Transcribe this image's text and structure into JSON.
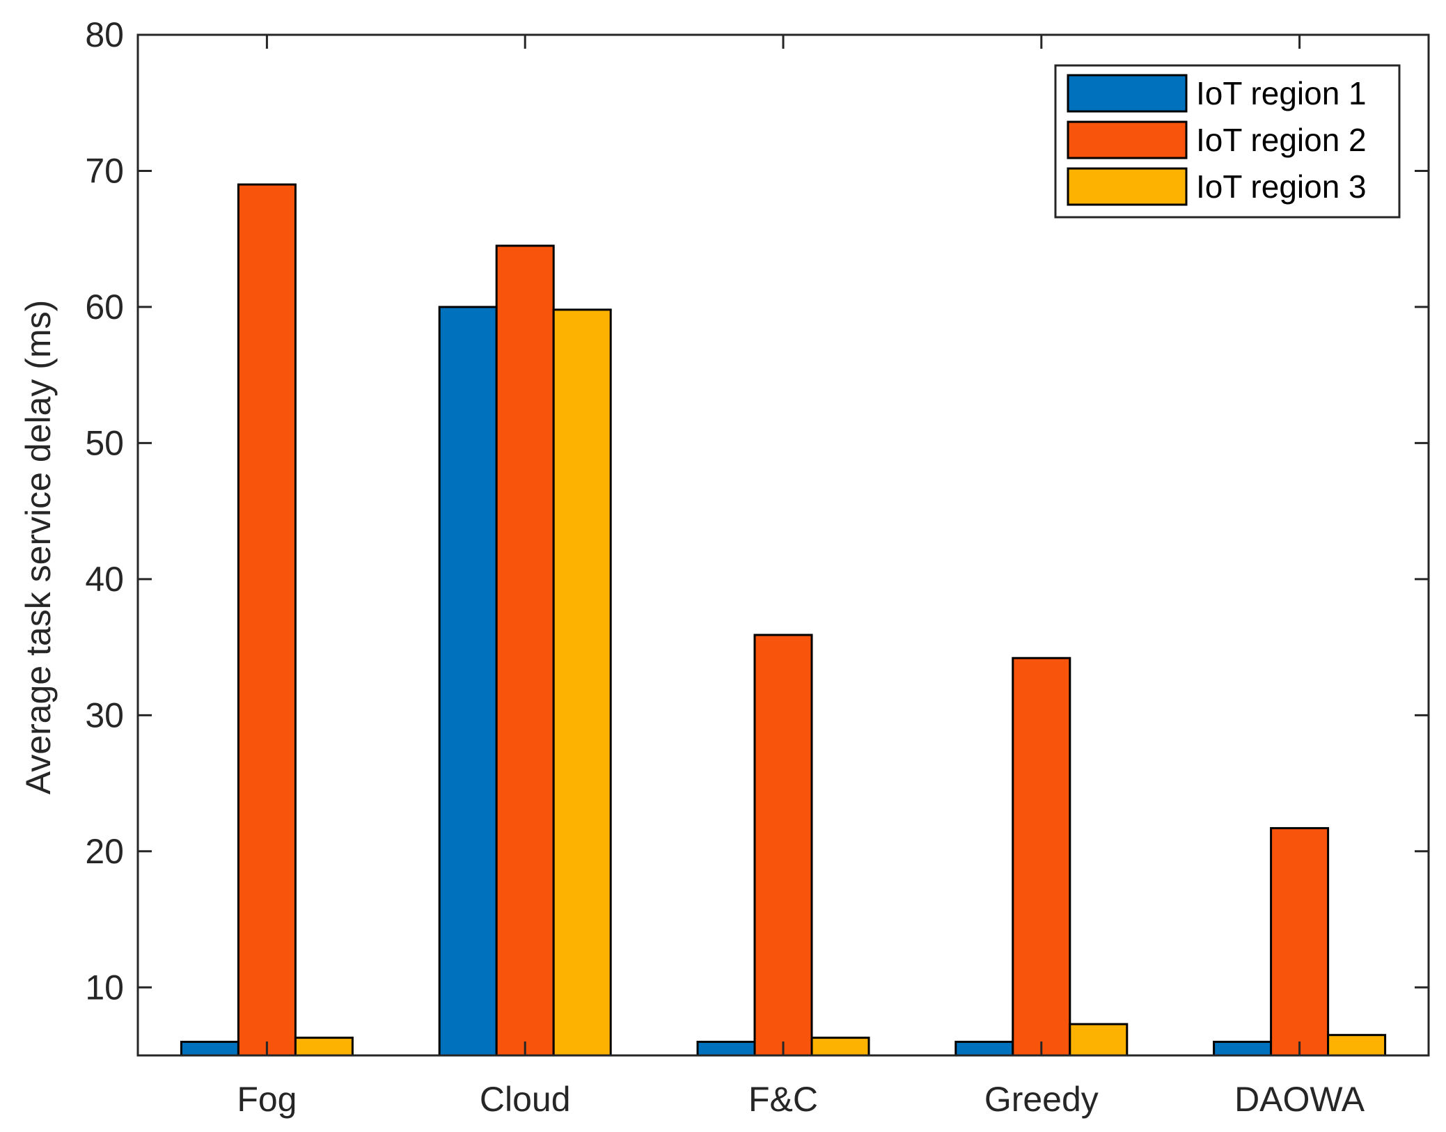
{
  "chart_data": {
    "type": "bar",
    "title": "",
    "xlabel": "",
    "ylabel": "Average task service delay (ms)",
    "categories": [
      "Fog",
      "Cloud",
      "F&C",
      "Greedy",
      "DAOWA"
    ],
    "series": [
      {
        "name": "IoT region 1",
        "color": "#0072BD",
        "values": [
          6.0,
          60.0,
          6.0,
          6.0,
          6.0
        ]
      },
      {
        "name": "IoT region 2",
        "color": "#F9540C",
        "values": [
          69.0,
          64.5,
          35.9,
          34.2,
          21.7
        ]
      },
      {
        "name": "IoT region 3",
        "color": "#FDB100",
        "values": [
          6.3,
          59.8,
          6.3,
          7.3,
          6.5
        ]
      }
    ],
    "ylim": [
      5,
      80
    ],
    "yticks": [
      10,
      20,
      30,
      40,
      50,
      60,
      70,
      80
    ],
    "grid": false,
    "legend_position": "top-right"
  }
}
